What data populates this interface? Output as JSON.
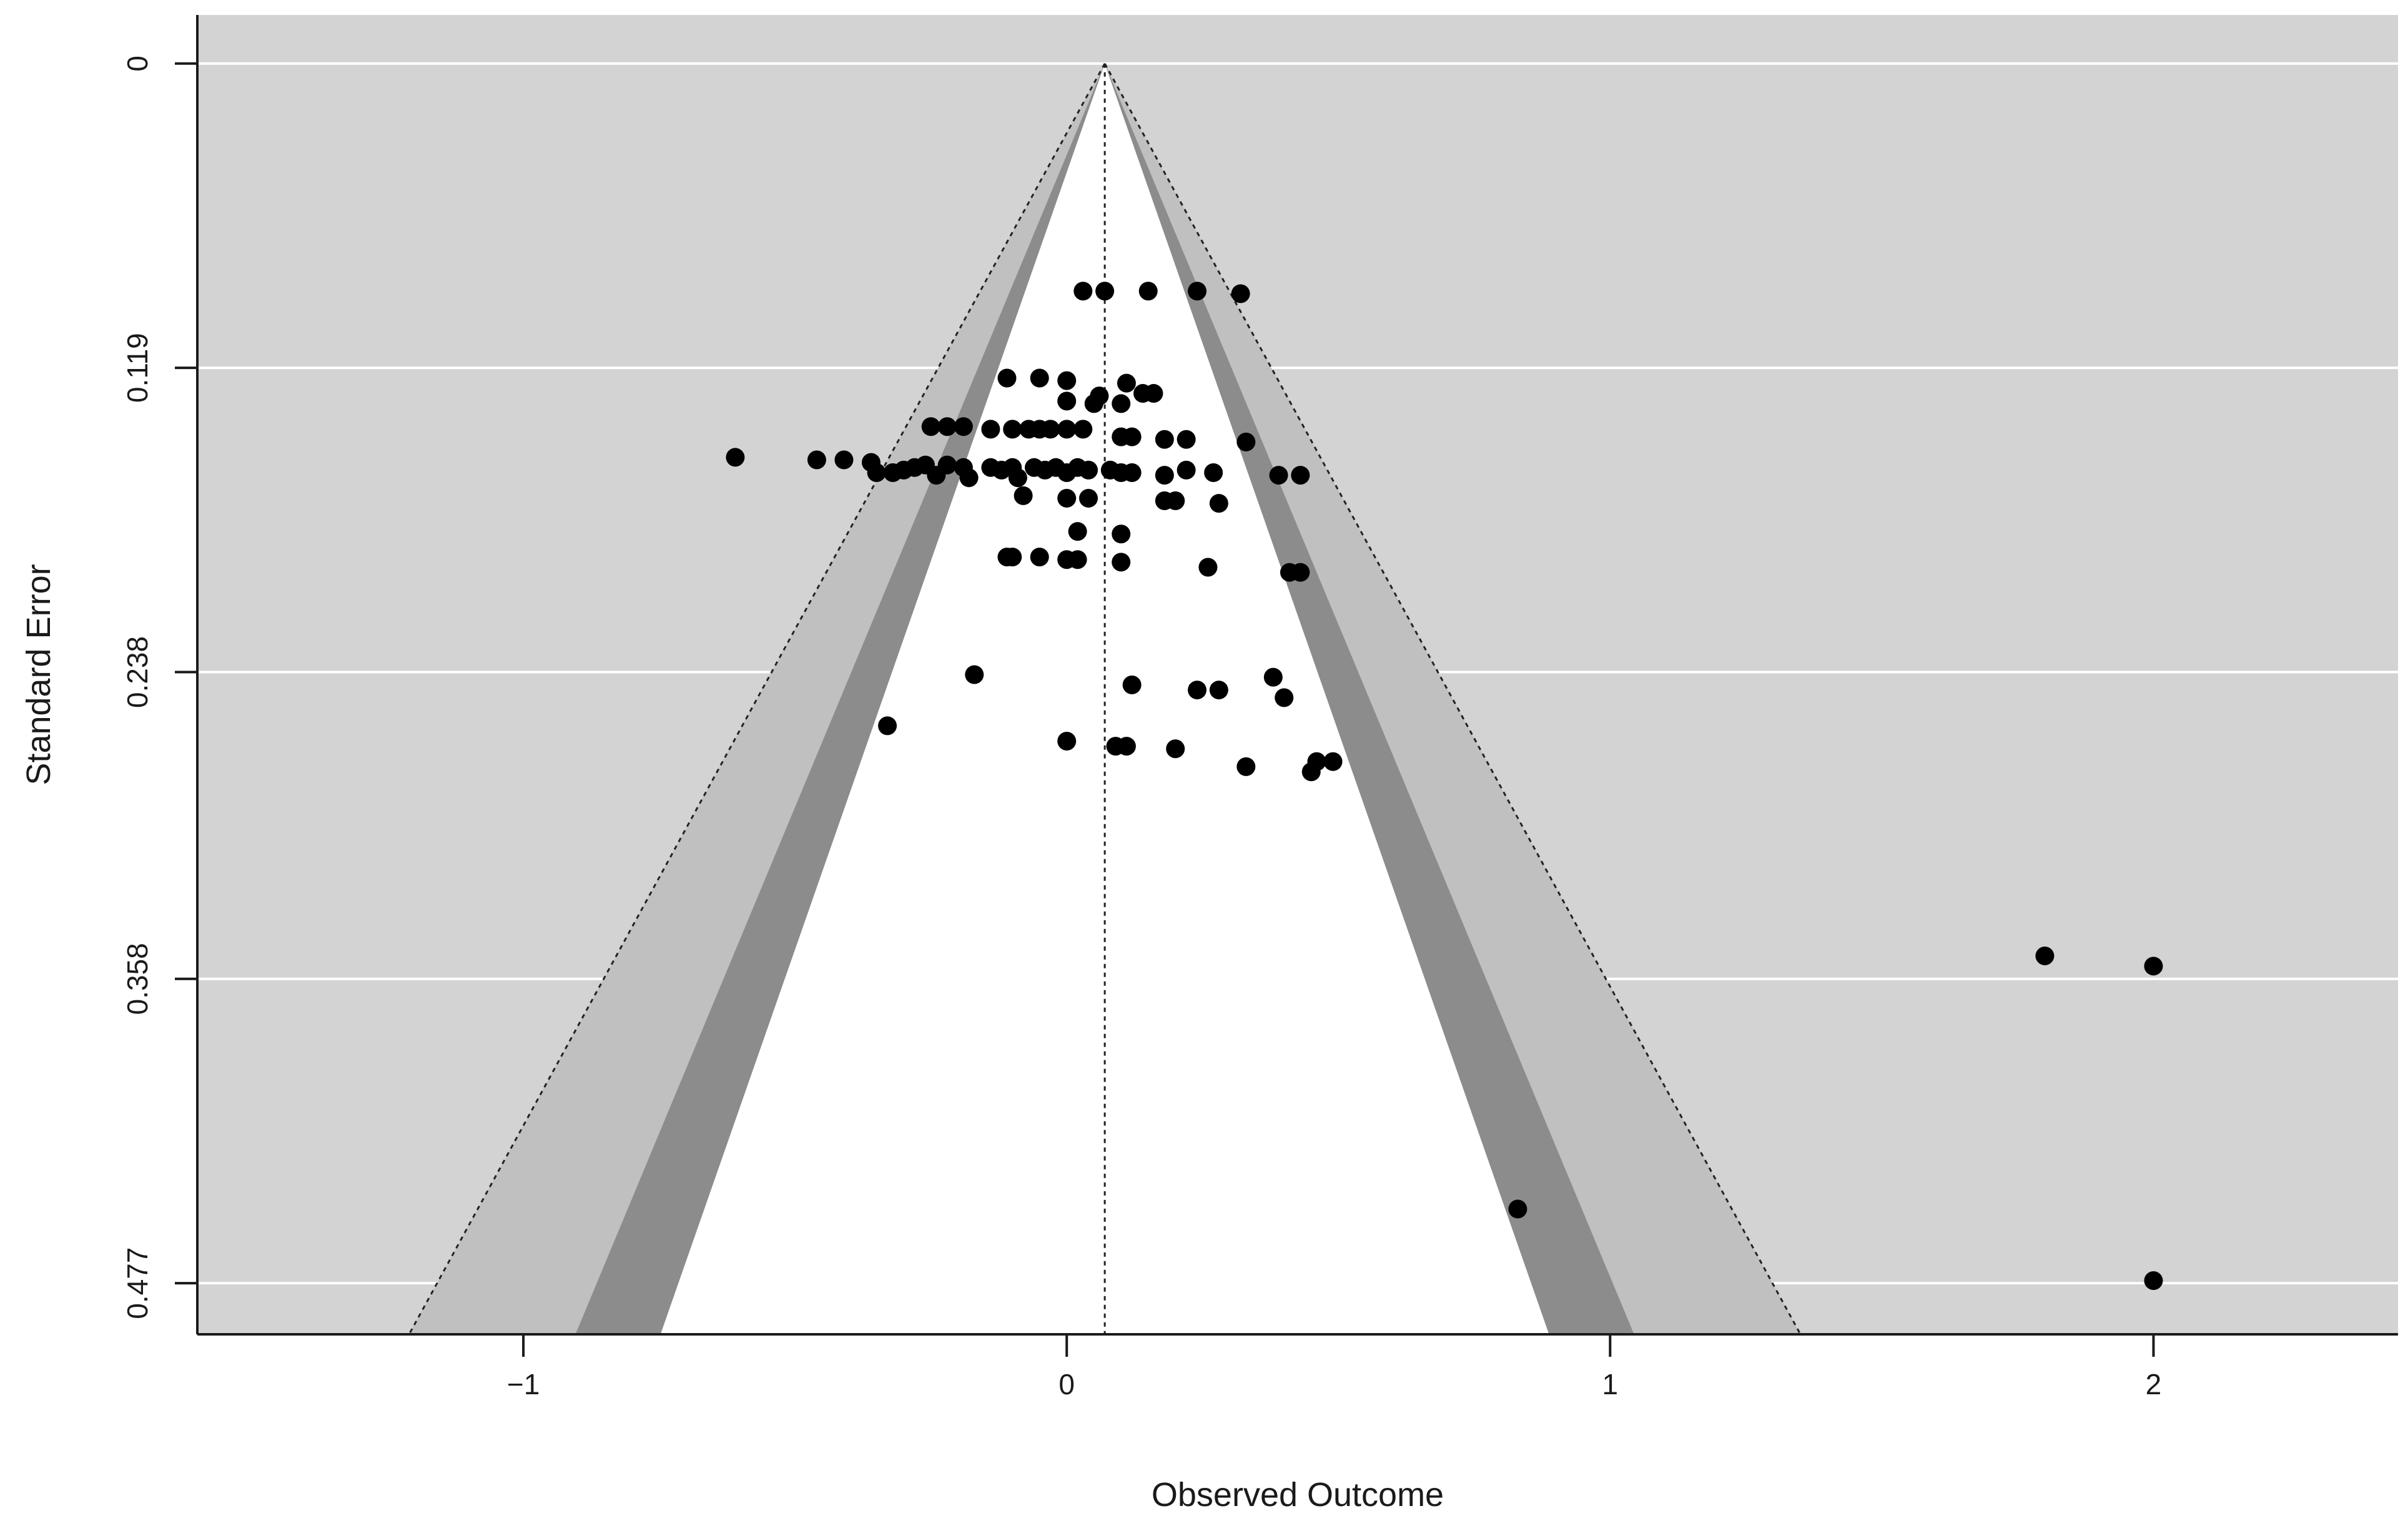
{
  "chart_data": {
    "type": "scatter",
    "title": "",
    "xlabel": "Observed Outcome",
    "ylabel": "Standard Error",
    "x_ticks": [
      "−1",
      "0",
      "1",
      "2"
    ],
    "x_tick_values": [
      -1,
      0,
      1,
      2
    ],
    "y_ticks": [
      "0",
      "0.119",
      "0.238",
      "0.358",
      "0.477"
    ],
    "y_tick_values": [
      0,
      0.119,
      0.238,
      0.358,
      0.477
    ],
    "xlim": [
      -1.6,
      2.45
    ],
    "ylim": [
      0.497,
      -0.019
    ],
    "y_reversed": true,
    "grid": "horizontal",
    "summary_estimate": 0.07,
    "contour_levels": [
      "90%",
      "95%",
      "99%"
    ],
    "contour_z": [
      1.645,
      1.96,
      2.576
    ],
    "colors": {
      "plot_background": "#d3d3d3",
      "region_90": "#ffffff",
      "region_95": "#8c8c8c",
      "region_99": "#c0c0c0",
      "points": "#000000",
      "gridlines": "#ffffff"
    },
    "points": [
      {
        "x": 0.03,
        "y": 0.089
      },
      {
        "x": 0.07,
        "y": 0.089
      },
      {
        "x": 0.15,
        "y": 0.089
      },
      {
        "x": 0.24,
        "y": 0.089
      },
      {
        "x": 0.32,
        "y": 0.09
      },
      {
        "x": -0.11,
        "y": 0.123
      },
      {
        "x": -0.05,
        "y": 0.123
      },
      {
        "x": 0.0,
        "y": 0.124
      },
      {
        "x": 0.11,
        "y": 0.125
      },
      {
        "x": 0.0,
        "y": 0.132
      },
      {
        "x": 0.05,
        "y": 0.133
      },
      {
        "x": 0.06,
        "y": 0.13
      },
      {
        "x": 0.1,
        "y": 0.133
      },
      {
        "x": 0.14,
        "y": 0.129
      },
      {
        "x": 0.16,
        "y": 0.129
      },
      {
        "x": -0.25,
        "y": 0.142
      },
      {
        "x": -0.22,
        "y": 0.142
      },
      {
        "x": -0.19,
        "y": 0.142
      },
      {
        "x": -0.14,
        "y": 0.143
      },
      {
        "x": -0.1,
        "y": 0.143
      },
      {
        "x": -0.07,
        "y": 0.143
      },
      {
        "x": -0.05,
        "y": 0.143
      },
      {
        "x": -0.03,
        "y": 0.143
      },
      {
        "x": 0.0,
        "y": 0.143
      },
      {
        "x": 0.03,
        "y": 0.143
      },
      {
        "x": 0.1,
        "y": 0.146
      },
      {
        "x": 0.12,
        "y": 0.146
      },
      {
        "x": 0.18,
        "y": 0.147
      },
      {
        "x": 0.22,
        "y": 0.147
      },
      {
        "x": 0.33,
        "y": 0.148
      },
      {
        "x": -0.61,
        "y": 0.154
      },
      {
        "x": -0.46,
        "y": 0.155
      },
      {
        "x": -0.41,
        "y": 0.155
      },
      {
        "x": -0.36,
        "y": 0.156
      },
      {
        "x": -0.35,
        "y": 0.16
      },
      {
        "x": -0.32,
        "y": 0.16
      },
      {
        "x": -0.3,
        "y": 0.159
      },
      {
        "x": -0.28,
        "y": 0.158
      },
      {
        "x": -0.26,
        "y": 0.157
      },
      {
        "x": -0.24,
        "y": 0.161
      },
      {
        "x": -0.22,
        "y": 0.157
      },
      {
        "x": -0.19,
        "y": 0.158
      },
      {
        "x": -0.18,
        "y": 0.162
      },
      {
        "x": -0.14,
        "y": 0.158
      },
      {
        "x": -0.12,
        "y": 0.159
      },
      {
        "x": -0.1,
        "y": 0.158
      },
      {
        "x": -0.09,
        "y": 0.162
      },
      {
        "x": -0.06,
        "y": 0.158
      },
      {
        "x": -0.04,
        "y": 0.159
      },
      {
        "x": -0.02,
        "y": 0.158
      },
      {
        "x": 0.0,
        "y": 0.16
      },
      {
        "x": 0.02,
        "y": 0.158
      },
      {
        "x": 0.04,
        "y": 0.159
      },
      {
        "x": 0.08,
        "y": 0.159
      },
      {
        "x": 0.1,
        "y": 0.16
      },
      {
        "x": 0.12,
        "y": 0.16
      },
      {
        "x": 0.18,
        "y": 0.161
      },
      {
        "x": 0.22,
        "y": 0.159
      },
      {
        "x": 0.27,
        "y": 0.16
      },
      {
        "x": 0.39,
        "y": 0.161
      },
      {
        "x": 0.43,
        "y": 0.161
      },
      {
        "x": -0.08,
        "y": 0.169
      },
      {
        "x": 0.0,
        "y": 0.17
      },
      {
        "x": 0.04,
        "y": 0.17
      },
      {
        "x": 0.18,
        "y": 0.171
      },
      {
        "x": 0.2,
        "y": 0.171
      },
      {
        "x": 0.28,
        "y": 0.172
      },
      {
        "x": 0.02,
        "y": 0.183
      },
      {
        "x": 0.1,
        "y": 0.184
      },
      {
        "x": -0.11,
        "y": 0.193
      },
      {
        "x": -0.1,
        "y": 0.193
      },
      {
        "x": -0.05,
        "y": 0.193
      },
      {
        "x": 0.0,
        "y": 0.194
      },
      {
        "x": 0.02,
        "y": 0.194
      },
      {
        "x": 0.1,
        "y": 0.195
      },
      {
        "x": 0.26,
        "y": 0.197
      },
      {
        "x": 0.41,
        "y": 0.199
      },
      {
        "x": 0.43,
        "y": 0.199
      },
      {
        "x": -0.17,
        "y": 0.239
      },
      {
        "x": 0.12,
        "y": 0.243
      },
      {
        "x": 0.24,
        "y": 0.245
      },
      {
        "x": 0.28,
        "y": 0.245
      },
      {
        "x": 0.38,
        "y": 0.24
      },
      {
        "x": 0.4,
        "y": 0.248
      },
      {
        "x": -0.33,
        "y": 0.259
      },
      {
        "x": 0.0,
        "y": 0.265
      },
      {
        "x": 0.09,
        "y": 0.267
      },
      {
        "x": 0.11,
        "y": 0.267
      },
      {
        "x": 0.2,
        "y": 0.268
      },
      {
        "x": 0.33,
        "y": 0.275
      },
      {
        "x": 0.45,
        "y": 0.277
      },
      {
        "x": 0.46,
        "y": 0.273
      },
      {
        "x": 0.49,
        "y": 0.273
      },
      {
        "x": 1.8,
        "y": 0.349
      },
      {
        "x": 2.0,
        "y": 0.353
      },
      {
        "x": 0.83,
        "y": 0.448
      },
      {
        "x": 2.0,
        "y": 0.476
      }
    ]
  }
}
